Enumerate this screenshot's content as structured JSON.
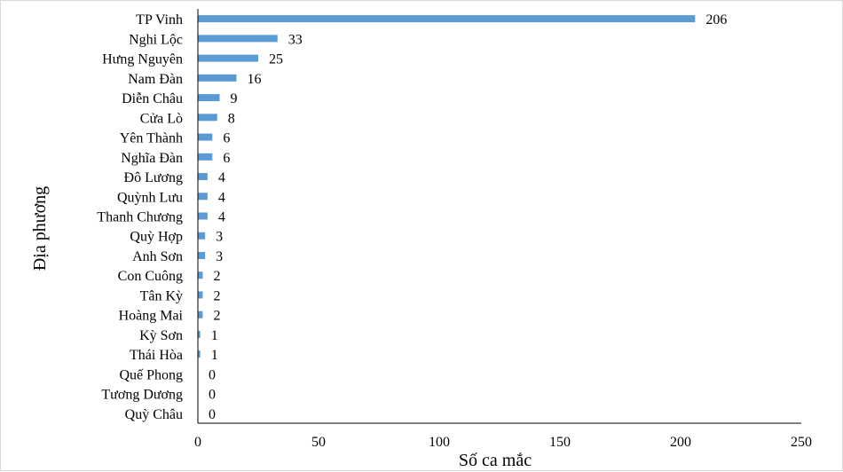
{
  "chart_data": {
    "type": "bar",
    "orientation": "horizontal",
    "categories": [
      "TP Vinh",
      "Nghi Lộc",
      "Hưng Nguyên",
      "Nam Đàn",
      "Diễn Châu",
      "Cửa Lò",
      "Yên Thành",
      "Nghĩa Đàn",
      "Đô Lương",
      "Quỳnh Lưu",
      "Thanh Chương",
      "Quỳ Hợp",
      "Anh Sơn",
      "Con Cuông",
      "Tân Kỳ",
      "Hoàng Mai",
      "Kỳ Sơn",
      "Thái Hòa",
      "Quế Phong",
      "Tương Dương",
      "Quỳ Châu"
    ],
    "values": [
      206,
      33,
      25,
      16,
      9,
      8,
      6,
      6,
      4,
      4,
      4,
      3,
      3,
      2,
      2,
      2,
      1,
      1,
      0,
      0,
      0
    ],
    "xlabel": "Số ca mắc",
    "ylabel": "Địa phương",
    "xlim": [
      0,
      250
    ],
    "xticks": [
      0,
      50,
      100,
      150,
      200,
      250
    ],
    "grid": false,
    "data_labels": true,
    "colors": {
      "bar": "#5b9bd5",
      "axis": "#000000",
      "border": "#d9d9d9"
    }
  }
}
